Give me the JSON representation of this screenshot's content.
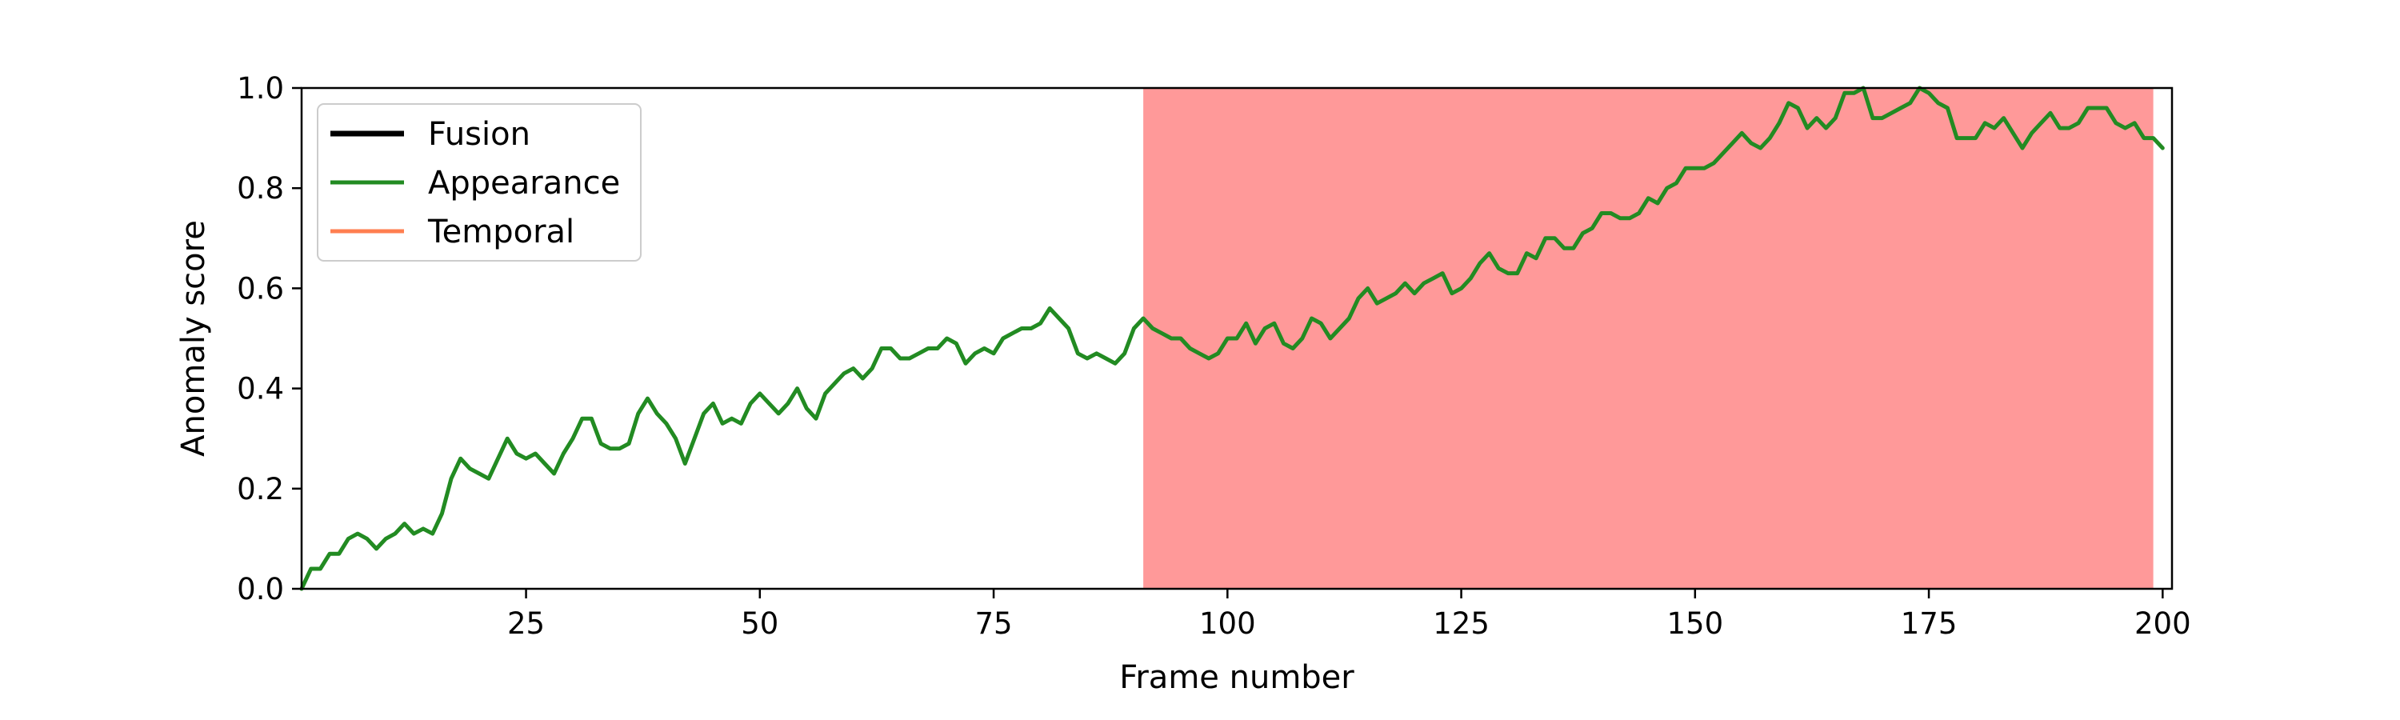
{
  "chart_data": {
    "type": "line",
    "title": "",
    "xlabel": "Frame number",
    "ylabel": "Anomaly score",
    "xlim": [
      1,
      201
    ],
    "ylim": [
      0.0,
      1.0
    ],
    "x_ticks": [
      25,
      50,
      75,
      100,
      125,
      150,
      175,
      200
    ],
    "x_tick_labels": [
      "25",
      "50",
      "75",
      "100",
      "125",
      "150",
      "175",
      "200"
    ],
    "y_ticks": [
      0.0,
      0.2,
      0.4,
      0.6,
      0.8,
      1.0
    ],
    "y_tick_labels": [
      "0.0",
      "0.2",
      "0.4",
      "0.6",
      "0.8",
      "1.0"
    ],
    "grid": false,
    "legend_position": "top-left",
    "anomaly_region": {
      "x_start": 91,
      "x_end": 199,
      "color": "#ff9999"
    },
    "series": [
      {
        "name": "Fusion",
        "color": "#000000",
        "values": []
      },
      {
        "name": "Appearance",
        "color": "#228b22",
        "x_start": 1,
        "values": [
          0.0,
          0.04,
          0.04,
          0.07,
          0.07,
          0.1,
          0.11,
          0.1,
          0.08,
          0.1,
          0.11,
          0.13,
          0.11,
          0.12,
          0.11,
          0.15,
          0.22,
          0.26,
          0.24,
          0.23,
          0.22,
          0.26,
          0.3,
          0.27,
          0.26,
          0.27,
          0.25,
          0.23,
          0.27,
          0.3,
          0.34,
          0.34,
          0.29,
          0.28,
          0.28,
          0.29,
          0.35,
          0.38,
          0.35,
          0.33,
          0.3,
          0.25,
          0.3,
          0.35,
          0.37,
          0.33,
          0.34,
          0.33,
          0.37,
          0.39,
          0.37,
          0.35,
          0.37,
          0.4,
          0.36,
          0.34,
          0.39,
          0.41,
          0.43,
          0.44,
          0.42,
          0.44,
          0.48,
          0.48,
          0.46,
          0.46,
          0.47,
          0.48,
          0.48,
          0.5,
          0.49,
          0.45,
          0.47,
          0.48,
          0.47,
          0.5,
          0.51,
          0.52,
          0.52,
          0.53,
          0.56,
          0.54,
          0.52,
          0.47,
          0.46,
          0.47,
          0.46,
          0.45,
          0.47,
          0.52,
          0.54,
          0.52,
          0.51,
          0.5,
          0.5,
          0.48,
          0.47,
          0.46,
          0.47,
          0.5,
          0.5,
          0.53,
          0.49,
          0.52,
          0.53,
          0.49,
          0.48,
          0.5,
          0.54,
          0.53,
          0.5,
          0.52,
          0.54,
          0.58,
          0.6,
          0.57,
          0.58,
          0.59,
          0.61,
          0.59,
          0.61,
          0.62,
          0.63,
          0.59,
          0.6,
          0.62,
          0.65,
          0.67,
          0.64,
          0.63,
          0.63,
          0.67,
          0.66,
          0.7,
          0.7,
          0.68,
          0.68,
          0.71,
          0.72,
          0.75,
          0.75,
          0.74,
          0.74,
          0.75,
          0.78,
          0.77,
          0.8,
          0.81,
          0.84,
          0.84,
          0.84,
          0.85,
          0.87,
          0.89,
          0.91,
          0.89,
          0.88,
          0.9,
          0.93,
          0.97,
          0.96,
          0.92,
          0.94,
          0.92,
          0.94,
          0.99,
          0.99,
          1.0,
          0.94,
          0.94,
          0.95,
          0.96,
          0.97,
          1.0,
          0.99,
          0.97,
          0.96,
          0.9,
          0.9,
          0.9,
          0.93,
          0.92,
          0.94,
          0.91,
          0.88,
          0.91,
          0.93,
          0.95,
          0.92,
          0.92,
          0.93,
          0.96,
          0.96,
          0.96,
          0.93,
          0.92,
          0.93,
          0.9,
          0.9,
          0.88
        ]
      },
      {
        "name": "Temporal",
        "color": "#ff7f50",
        "values": []
      }
    ]
  }
}
